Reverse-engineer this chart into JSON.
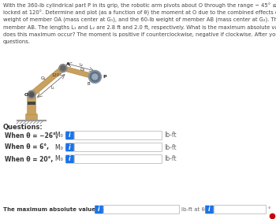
{
  "bg_color": "#ffffff",
  "text_color": "#555555",
  "body_text_lines": [
    "With the 360-lb cylindrical part P in its grip, the robotic arm pivots about O through the range − 45° ≤ θ ≤ 45° with the angle at A",
    "locked at 120°. Determine and plot (as a function of θ) the moment at O due to the combined effects of the 360-lb part P, the 100-lb",
    "weight of member OA (mass center at G₁), and the 60-lb weight of member AB (mass center at G₂). The end grip is included as a part of",
    "member AB. The lengths L₁ and L₂ are 2.8 ft and 2.0 ft, respectively. What is the maximum absolute value of M₀ and at what value of θ",
    "does this maximum occur? The moment is positive if counterclockwise, negative if clockwise. After you have the plot, answer the",
    "questions."
  ],
  "questions_label": "Questions:",
  "q1_label": "When θ = −26°,",
  "q1_mo": "M₀ =",
  "q2_label": "When θ = 6°,",
  "q2_mo": "M₀ =",
  "q3_label": "When θ = 20°,",
  "q3_mo": "M₀ =",
  "unit_lbft": "lb-ft",
  "maxval_label": "The maximum absolute value M₀max =",
  "maxval_unit": "lb-ft at θ =",
  "maxval_deg": "°",
  "info_btn_color": "#1a73e8",
  "info_btn_text": "i",
  "arm_color": "#c8a060",
  "arm_color2": "#b89040",
  "joint_color": "#888888",
  "gripper_color": "#7090a0",
  "text_dark": "#333333"
}
